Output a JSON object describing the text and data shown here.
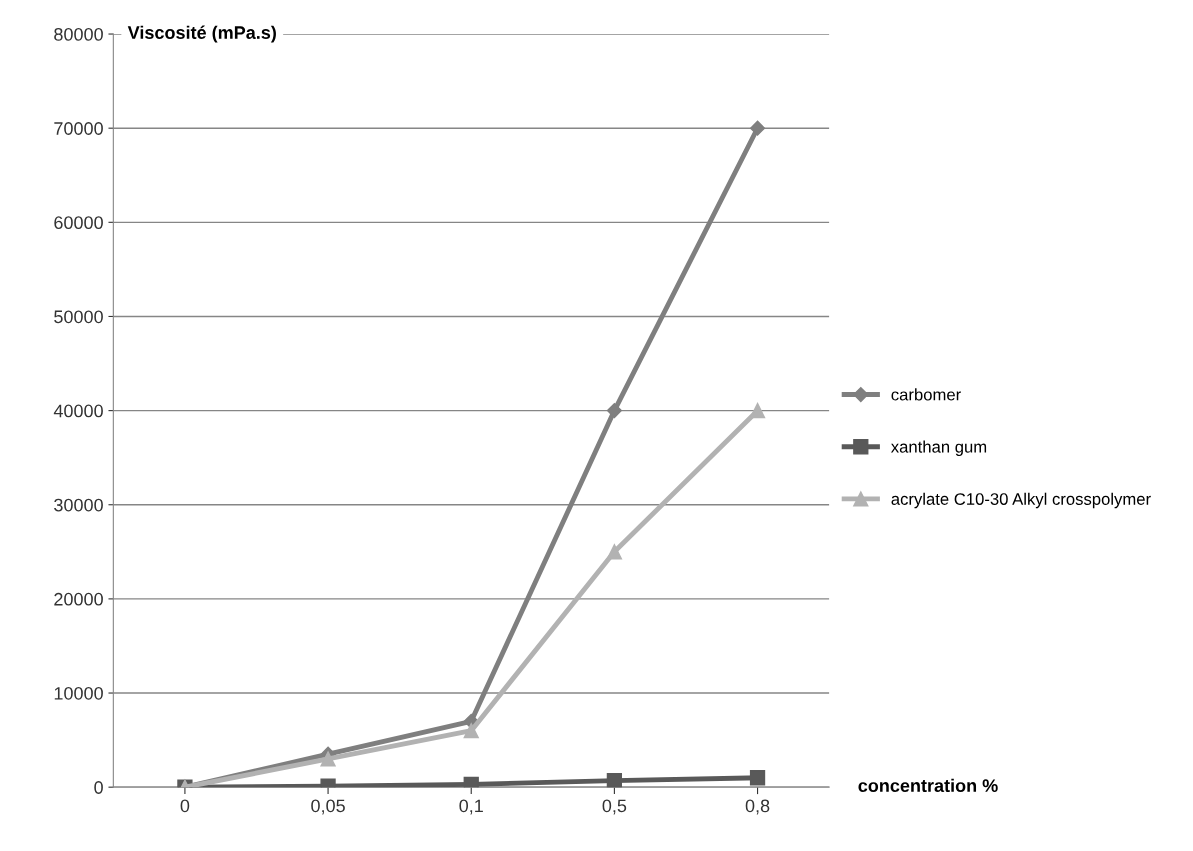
{
  "chart_data": {
    "type": "line",
    "ylabel": "Viscosité (mPa.s)",
    "xlabel": "concentration %",
    "categories": [
      "0",
      "0,05",
      "0,1",
      "0,5",
      "0,8"
    ],
    "series": [
      {
        "name": "carbomer",
        "color": "#7f7f7f",
        "marker": "diamond",
        "values": [
          0,
          3500,
          7000,
          40000,
          70000
        ]
      },
      {
        "name": "xanthan gum",
        "color": "#595959",
        "marker": "square",
        "values": [
          0,
          100,
          300,
          700,
          1000
        ]
      },
      {
        "name": "acrylate C10-30 Alkyl crosspolymer",
        "color": "#b2b2b2",
        "marker": "triangle",
        "values": [
          0,
          3000,
          6000,
          25000,
          40000
        ]
      }
    ],
    "ylim": [
      0,
      80000
    ],
    "yticks": [
      0,
      10000,
      20000,
      30000,
      40000,
      50000,
      60000,
      70000,
      80000
    ],
    "grid": "y",
    "legend": "right",
    "line_style": "solid"
  }
}
